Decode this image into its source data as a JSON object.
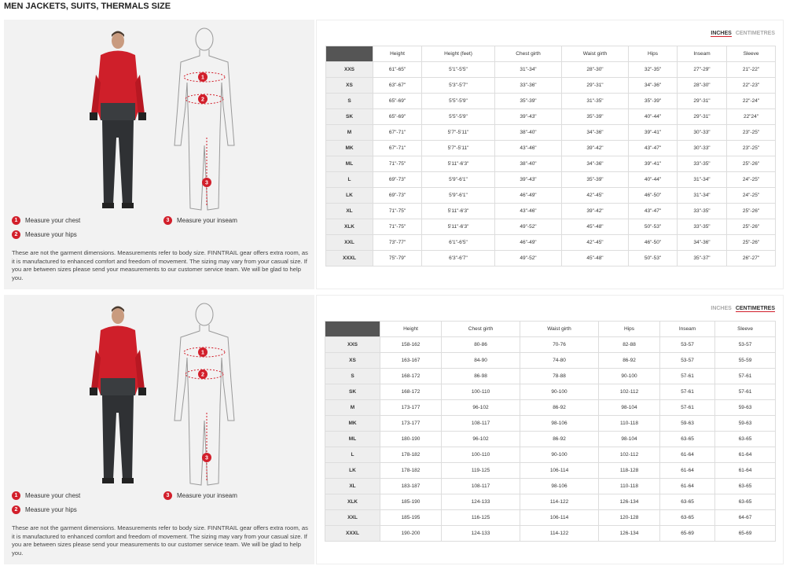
{
  "title": "MEN JACKETS, SUITS, THERMALS SIZE",
  "sections": [
    {
      "units": [
        "INCHES",
        "CENTIMETRES"
      ],
      "active_unit": 0,
      "legend": [
        {
          "num": "1",
          "text": "Measure your chest"
        },
        {
          "num": "2",
          "text": "Measure your hips"
        },
        {
          "num": "3",
          "text": "Measure your inseam"
        }
      ],
      "note": "These are not the garment dimensions. Measurements refer to body size. FINNTRAIL gear offers extra room, as it is manufactured to enhanced comfort and freedom of movement. The sizing may vary from your casual size. If you are between sizes please send your measurements to our customer service team. We will be glad to help you.",
      "table": {
        "columns": [
          "Height",
          "Height (feet)",
          "Chest girth",
          "Waist girth",
          "Hips",
          "Inseam",
          "Sleeve"
        ],
        "rows": [
          [
            "XXS",
            "61\"-65\"",
            "5'1\"-5'5\"",
            "31\"-34\"",
            "28\"-30\"",
            "32\"-35\"",
            "27\"-29\"",
            "21\"-22\""
          ],
          [
            "XS",
            "63\"-67\"",
            "5'3\"-5'7\"",
            "33\"-36\"",
            "29\"-31\"",
            "34\"-36\"",
            "28\"-30\"",
            "22\"-23\""
          ],
          [
            "S",
            "65\"-69\"",
            "5'5\"-5'9\"",
            "35\"-39\"",
            "31\"-35\"",
            "35\"-39\"",
            "29\"-31\"",
            "22\"-24\""
          ],
          [
            "SK",
            "65\"-69\"",
            "5'5\"-5'9\"",
            "39\"-43\"",
            "35\"-39\"",
            "40\"-44\"",
            "29\"-31\"",
            "22\"24\""
          ],
          [
            "M",
            "67\"-71\"",
            "5'7\"-5'11\"",
            "38\"-40\"",
            "34\"-36\"",
            "39\"-41\"",
            "30\"-33\"",
            "23\"-25\""
          ],
          [
            "MK",
            "67\"-71\"",
            "5'7\"-5'11\"",
            "43\"-46\"",
            "39\"-42\"",
            "43\"-47\"",
            "30\"-33\"",
            "23\"-25\""
          ],
          [
            "ML",
            "71\"-75\"",
            "5'11\"-6'3\"",
            "38\"-40\"",
            "34\"-36\"",
            "39\"-41\"",
            "33\"-35\"",
            "25\"-26\""
          ],
          [
            "L",
            "69\"-73\"",
            "5'9\"-6'1\"",
            "39\"-43\"",
            "35\"-39\"",
            "40\"-44\"",
            "31\"-34\"",
            "24\"-25\""
          ],
          [
            "LK",
            "69\"-73\"",
            "5'9\"-6'1\"",
            "46\"-49\"",
            "42\"-45\"",
            "46\"-50\"",
            "31\"-34\"",
            "24\"-25\""
          ],
          [
            "XL",
            "71\"-75\"",
            "5'11\"-6'3\"",
            "43\"-46\"",
            "39\"-42\"",
            "43\"-47\"",
            "33\"-35\"",
            "25\"-26\""
          ],
          [
            "XLK",
            "71\"-75\"",
            "5'11\"-6'3\"",
            "49\"-52\"",
            "45\"-48\"",
            "50\"-53\"",
            "33\"-35\"",
            "25\"-26\""
          ],
          [
            "XXL",
            "73\"-77\"",
            "6'1\"-6'5\"",
            "46\"-49\"",
            "42\"-45\"",
            "46\"-50\"",
            "34\"-36\"",
            "25\"-26\""
          ],
          [
            "XXXL",
            "75\"-79\"",
            "6'3\"-6'7\"",
            "49\"-52\"",
            "45\"-48\"",
            "50\"-53\"",
            "35\"-37\"",
            "26\"-27\""
          ]
        ]
      }
    },
    {
      "units": [
        "INCHES",
        "CENTIMETRES"
      ],
      "active_unit": 1,
      "legend": [
        {
          "num": "1",
          "text": "Measure your chest"
        },
        {
          "num": "2",
          "text": "Measure your hips"
        },
        {
          "num": "3",
          "text": "Measure your inseam"
        }
      ],
      "note": "These are not the garment dimensions. Measurements refer to body size. FINNTRAIL gear offers extra room, as it is manufactured to enhanced comfort and freedom of movement. The sizing may vary from your casual size. If you are between sizes please send your measurements to our customer service team. We will be glad to help you.",
      "table": {
        "columns": [
          "Height",
          "Chest girth",
          "Waist girth",
          "Hips",
          "Inseam",
          "Sleeve"
        ],
        "rows": [
          [
            "XXS",
            "158-162",
            "80-86",
            "70-76",
            "82-88",
            "53-57",
            "53-57"
          ],
          [
            "XS",
            "163-167",
            "84-90",
            "74-80",
            "86-92",
            "53-57",
            "55-59"
          ],
          [
            "S",
            "168-172",
            "86-98",
            "78-88",
            "90-100",
            "57-61",
            "57-61"
          ],
          [
            "SK",
            "168-172",
            "100-110",
            "90-100",
            "102-112",
            "57-61",
            "57-61"
          ],
          [
            "M",
            "173-177",
            "96-102",
            "86-92",
            "98-104",
            "57-61",
            "59-63"
          ],
          [
            "MK",
            "173-177",
            "108-117",
            "98-106",
            "110-118",
            "59-63",
            "59-63"
          ],
          [
            "ML",
            "180-190",
            "96-102",
            "86-92",
            "98-104",
            "63-65",
            "63-65"
          ],
          [
            "L",
            "178-182",
            "100-110",
            "90-100",
            "102-112",
            "61-64",
            "61-64"
          ],
          [
            "LK",
            "178-182",
            "119-125",
            "106-114",
            "118-128",
            "61-64",
            "61-64"
          ],
          [
            "XL",
            "183-187",
            "108-117",
            "98-106",
            "110-118",
            "61-64",
            "63-65"
          ],
          [
            "XLK",
            "185-190",
            "124-133",
            "114-122",
            "126-134",
            "63-65",
            "63-65"
          ],
          [
            "XXL",
            "185-195",
            "116-125",
            "106-114",
            "120-128",
            "63-65",
            "64-67"
          ],
          [
            "XXXL",
            "190-200",
            "124-133",
            "114-122",
            "126-134",
            "65-69",
            "65-69"
          ]
        ]
      }
    }
  ]
}
